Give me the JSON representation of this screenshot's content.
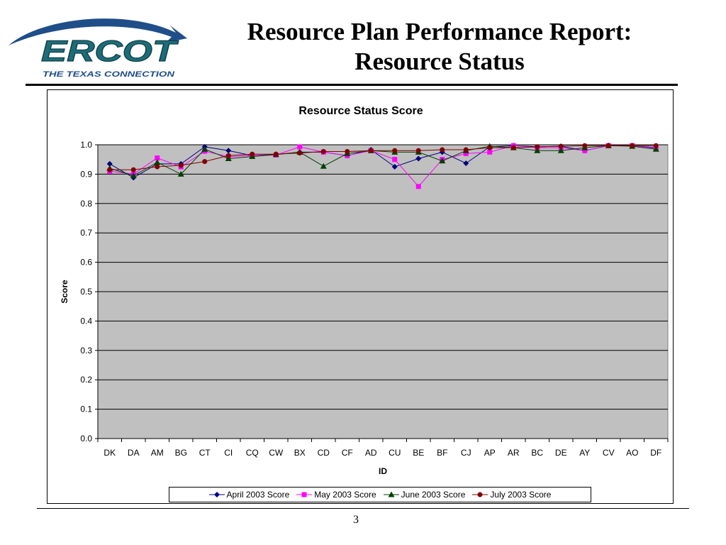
{
  "header": {
    "logo_text": "ERCOT",
    "logo_tagline": "THE TEXAS CONNECTION",
    "title_line1": "Resource Plan Performance Report:",
    "title_line2": "Resource Status"
  },
  "footer": {
    "page_number": "3"
  },
  "colors": {
    "plot_bg": "#c0c0c0",
    "logo_blue": "#1f4e89",
    "logo_teal": "#1d6d78"
  },
  "chart_data": {
    "type": "line",
    "title": "Resource Status Score",
    "xlabel": "ID",
    "ylabel": "Score",
    "ylim": [
      0,
      1
    ],
    "yticks": [
      "0.0",
      "0.1",
      "0.2",
      "0.3",
      "0.4",
      "0.5",
      "0.6",
      "0.7",
      "0.8",
      "0.9",
      "1.0"
    ],
    "grid": true,
    "legend_position": "bottom",
    "categories": [
      "DK",
      "DA",
      "AM",
      "BG",
      "CT",
      "CI",
      "CQ",
      "CW",
      "BX",
      "CD",
      "CF",
      "AD",
      "CU",
      "BE",
      "BF",
      "CJ",
      "AP",
      "AR",
      "BC",
      "DE",
      "AY",
      "CV",
      "AO",
      "DF"
    ],
    "series": [
      {
        "name": "April 2003 Score",
        "color": "#000080",
        "marker": "diamond",
        "values": [
          0.935,
          0.888,
          0.935,
          0.935,
          0.993,
          0.98,
          0.963,
          0.967,
          0.975,
          0.975,
          0.963,
          0.983,
          0.925,
          0.953,
          0.975,
          0.937,
          0.993,
          0.997,
          0.993,
          0.995,
          0.98,
          0.997,
          0.997,
          0.99
        ]
      },
      {
        "name": "May 2003 Score",
        "color": "#ff00ff",
        "marker": "square",
        "values": [
          0.91,
          0.9,
          0.955,
          0.925,
          0.978,
          0.96,
          0.963,
          0.965,
          0.993,
          0.975,
          0.963,
          0.98,
          0.95,
          0.858,
          0.95,
          0.97,
          0.975,
          0.997,
          0.99,
          0.99,
          0.98,
          0.997,
          0.997,
          0.988
        ]
      },
      {
        "name": "June 2003 Score",
        "color": "#004000",
        "marker": "triangle",
        "values": [
          0.92,
          0.895,
          0.94,
          0.9,
          0.985,
          0.953,
          0.96,
          0.967,
          0.975,
          0.927,
          0.97,
          0.98,
          0.975,
          0.975,
          0.945,
          0.98,
          0.995,
          0.99,
          0.98,
          0.98,
          0.99,
          0.997,
          0.995,
          0.985
        ]
      },
      {
        "name": "July 2003 Score",
        "color": "#800000",
        "marker": "circle",
        "values": [
          0.915,
          0.915,
          0.925,
          0.93,
          0.943,
          0.963,
          0.968,
          0.968,
          0.972,
          0.977,
          0.977,
          0.98,
          0.98,
          0.98,
          0.983,
          0.983,
          0.99,
          0.99,
          0.993,
          0.995,
          0.997,
          0.997,
          0.997,
          0.997
        ]
      }
    ]
  }
}
